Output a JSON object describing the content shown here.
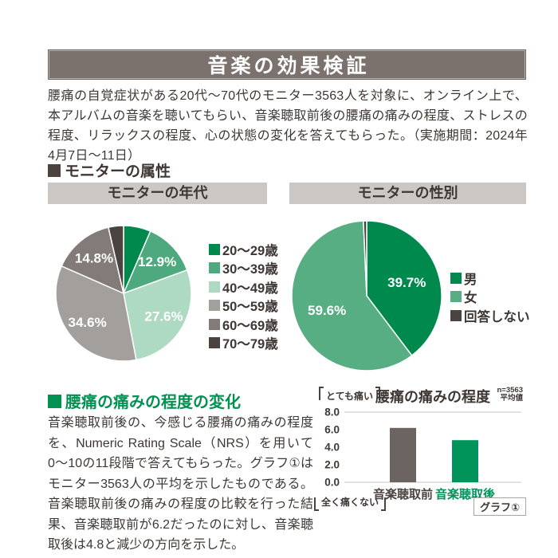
{
  "page": {
    "title": "音楽の効果検証",
    "intro": "腰痛の自覚症状がある20代〜70代のモニター3563人を対象に、オンライン上で、本アルバムの音楽を聴いてもらい、音楽聴取前後の腰痛の痛みの程度、ストレスの程度、リラックスの程度、心の状態の変化を答えてもらった。（実施期間：2024年4月7日〜11日）"
  },
  "attributes_section": {
    "heading": "モニターの属性"
  },
  "pain_section": {
    "heading": "腰痛の痛みの程度の変化",
    "body": "音楽聴取前後の、今感じる腰痛の痛みの程度を、Numeric Rating Scale（NRS）を用いて0〜10の11段階で答えてもらった。グラフ①はモニター3563人の平均を示したものである。音楽聴取前後の痛みの程度の比較を行った結果、音楽聴取前が6.2だったのに対し、音楽聴取後は4.8と減少の方向を示した。"
  },
  "colors": {
    "banner_bg": "#7b726e",
    "title_bar_bg": "#cbc7c4",
    "accent_green": "#009153",
    "text": "#3e3734",
    "grid": "#c8c5c3"
  },
  "chart_data": [
    {
      "type": "pie",
      "title": "モニターの年代",
      "start_angle_deg": 0,
      "direction": "clockwise",
      "legend_position": "right",
      "slices": [
        {
          "label": "20〜29歳",
          "value": 6.5,
          "color": "#00894d",
          "label_outside": true,
          "label_color": "#009153"
        },
        {
          "label": "30〜39歳",
          "value": 12.9,
          "color": "#4fa97e"
        },
        {
          "label": "40〜49歳",
          "value": 27.6,
          "color": "#aed9c3"
        },
        {
          "label": "50〜59歳",
          "value": 34.6,
          "color": "#a39f9c"
        },
        {
          "label": "60〜69歳",
          "value": 14.8,
          "color": "#827b77"
        },
        {
          "label": "70〜79歳",
          "value": 3.6,
          "color": "#4a4340",
          "label_outside": true,
          "label_color": "#4a4340"
        }
      ]
    },
    {
      "type": "pie",
      "title": "モニターの性別",
      "start_angle_deg": 0,
      "direction": "clockwise",
      "legend_position": "right",
      "slices": [
        {
          "label": "男",
          "value": 39.7,
          "color": "#00894d"
        },
        {
          "label": "女",
          "value": 59.6,
          "color": "#57ae83"
        },
        {
          "label": "回答しない",
          "value": 0.7,
          "color": "#4a4340",
          "label_outside": true,
          "label_color": "#4a4340"
        }
      ]
    },
    {
      "type": "bar",
      "title": "腰痛の痛みの程度",
      "note_lines": [
        "n=3563",
        "平均値"
      ],
      "categories": [
        "音楽聴取前",
        "音楽聴取後"
      ],
      "values": [
        6.2,
        4.8
      ],
      "bar_colors": [
        "#6b6460",
        "#00935a"
      ],
      "category_colors": [
        "#4a4340",
        "#00935a"
      ],
      "y_ticks": [
        "8.0",
        "6.0",
        "4.0",
        "2.0",
        "0.0"
      ],
      "ylim": [
        0,
        8
      ],
      "grid": "top-and-baseline-only",
      "top_label": "とても痛い",
      "bottom_label": "全く痛くない",
      "caption": "グラフ①"
    }
  ]
}
